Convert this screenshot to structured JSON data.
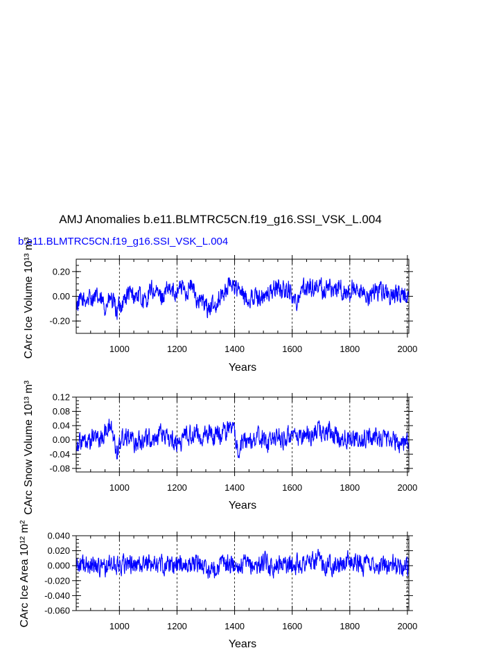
{
  "figure": {
    "title": "AMJ Anomalies b.e11.BLMTRC5CN.f19_g16.SSI_VSK_L.004",
    "subtitle": "b.e11.BLMTRC5CN.f19_g16.SSI_VSK_L.004",
    "line_color": "#0000ff"
  },
  "chart_data": [
    {
      "type": "line",
      "xlabel": "Years",
      "ylabel": "CArc Ice Volume 10¹³ m³",
      "xlim": [
        850,
        2005
      ],
      "ylim": [
        -0.3,
        0.3
      ],
      "xticks": [
        "1000",
        "1200",
        "1400",
        "1600",
        "1800",
        "2000"
      ],
      "yticks": [
        "0.20",
        "0.00",
        "-0.20"
      ],
      "grid": "dashed vertical lines at major x ticks",
      "series": [
        {
          "x": [
            850,
            870,
            890,
            910,
            930,
            950,
            970,
            990,
            1010,
            1030,
            1050,
            1070,
            1090,
            1110,
            1130,
            1150,
            1170,
            1190,
            1210,
            1230,
            1250,
            1270,
            1290,
            1310,
            1330,
            1350,
            1370,
            1390,
            1410,
            1430,
            1450,
            1470,
            1490,
            1510,
            1530,
            1550,
            1570,
            1590,
            1610,
            1630,
            1650,
            1670,
            1690,
            1710,
            1730,
            1750,
            1770,
            1790,
            1810,
            1830,
            1850,
            1870,
            1890,
            1910,
            1930,
            1950,
            1970,
            1990,
            2005
          ],
          "values": [
            -0.06,
            -0.04,
            -0.02,
            0.0,
            -0.03,
            -0.08,
            -0.02,
            -0.12,
            -0.05,
            0.02,
            0.0,
            0.0,
            -0.05,
            0.05,
            0.02,
            0.0,
            0.05,
            0.03,
            0.08,
            0.04,
            0.08,
            -0.02,
            -0.05,
            -0.1,
            -0.08,
            0.0,
            0.05,
            0.12,
            0.05,
            0.0,
            -0.02,
            0.0,
            0.0,
            0.0,
            0.05,
            0.08,
            0.04,
            0.06,
            -0.05,
            0.05,
            0.08,
            0.07,
            0.09,
            0.04,
            0.08,
            0.05,
            0.06,
            0.0,
            0.06,
            -0.02,
            0.02,
            0.0,
            0.06,
            0.04,
            0.03,
            -0.02,
            0.02,
            0.01,
            -0.05
          ]
        }
      ]
    },
    {
      "type": "line",
      "xlabel": "Years",
      "ylabel": "CArc Snow Volume 10¹³ m³",
      "xlim": [
        850,
        2005
      ],
      "ylim": [
        -0.09,
        0.12
      ],
      "xticks": [
        "1000",
        "1200",
        "1400",
        "1600",
        "1800",
        "2000"
      ],
      "yticks": [
        "0.12",
        "0.08",
        "0.04",
        "0.00",
        "-0.04",
        "-0.08"
      ],
      "grid": "dashed vertical lines at major x ticks",
      "series": [
        {
          "x": [
            850,
            870,
            890,
            910,
            930,
            950,
            970,
            990,
            1010,
            1030,
            1050,
            1070,
            1090,
            1110,
            1130,
            1150,
            1170,
            1190,
            1210,
            1230,
            1250,
            1270,
            1290,
            1310,
            1330,
            1350,
            1370,
            1390,
            1410,
            1430,
            1450,
            1470,
            1490,
            1510,
            1530,
            1550,
            1570,
            1590,
            1610,
            1630,
            1650,
            1670,
            1690,
            1710,
            1730,
            1750,
            1770,
            1790,
            1810,
            1830,
            1850,
            1870,
            1890,
            1910,
            1930,
            1950,
            1970,
            1990,
            2005
          ],
          "values": [
            -0.01,
            0.0,
            -0.02,
            0.01,
            0.0,
            0.02,
            0.04,
            -0.03,
            0.01,
            0.02,
            -0.01,
            0.0,
            0.01,
            0.0,
            0.01,
            0.02,
            0.0,
            0.0,
            -0.01,
            0.02,
            0.01,
            0.02,
            0.0,
            0.02,
            0.01,
            0.02,
            0.03,
            0.04,
            -0.02,
            -0.01,
            0.0,
            0.0,
            0.01,
            -0.01,
            0.0,
            0.01,
            0.0,
            0.01,
            0.0,
            0.01,
            0.02,
            0.01,
            0.03,
            0.02,
            0.02,
            0.01,
            0.0,
            0.01,
            0.01,
            -0.01,
            0.0,
            0.01,
            0.01,
            0.0,
            0.01,
            0.0,
            -0.01,
            0.0,
            -0.02
          ]
        }
      ]
    },
    {
      "type": "line",
      "xlabel": "Years",
      "ylabel": "CArc Ice Area 10¹² m²",
      "xlim": [
        850,
        2005
      ],
      "ylim": [
        -0.06,
        0.04
      ],
      "xticks": [
        "1000",
        "1200",
        "1400",
        "1600",
        "1800",
        "2000"
      ],
      "yticks": [
        "0.040",
        "0.020",
        "0.000",
        "-0.020",
        "-0.040",
        "-0.060"
      ],
      "grid": "dashed vertical lines at major x ticks",
      "series": [
        {
          "x": [
            850,
            870,
            890,
            910,
            930,
            950,
            970,
            990,
            1010,
            1030,
            1050,
            1070,
            1090,
            1110,
            1130,
            1150,
            1170,
            1190,
            1210,
            1230,
            1250,
            1270,
            1290,
            1310,
            1330,
            1350,
            1370,
            1390,
            1410,
            1430,
            1450,
            1470,
            1490,
            1510,
            1530,
            1550,
            1570,
            1590,
            1610,
            1630,
            1650,
            1670,
            1690,
            1710,
            1730,
            1750,
            1770,
            1790,
            1810,
            1830,
            1850,
            1870,
            1890,
            1910,
            1930,
            1950,
            1970,
            1990,
            2005
          ],
          "values": [
            0.0,
            0.002,
            -0.002,
            0.004,
            0.0,
            -0.003,
            0.002,
            0.0,
            0.003,
            0.004,
            0.0,
            0.002,
            0.001,
            0.005,
            0.002,
            0.0,
            0.003,
            0.001,
            0.004,
            0.0,
            0.002,
            0.004,
            0.0,
            -0.005,
            -0.004,
            0.002,
            0.003,
            0.001,
            0.0,
            0.002,
            -0.002,
            0.0,
            0.002,
            0.003,
            -0.001,
            0.002,
            0.004,
            0.0,
            0.003,
            0.002,
            0.005,
            0.004,
            0.006,
            0.003,
            0.004,
            0.002,
            0.0,
            0.004,
            0.006,
            0.002,
            0.001,
            0.003,
            0.002,
            0.0,
            0.002,
            0.001,
            -0.001,
            0.0,
            0.001
          ]
        }
      ]
    }
  ]
}
